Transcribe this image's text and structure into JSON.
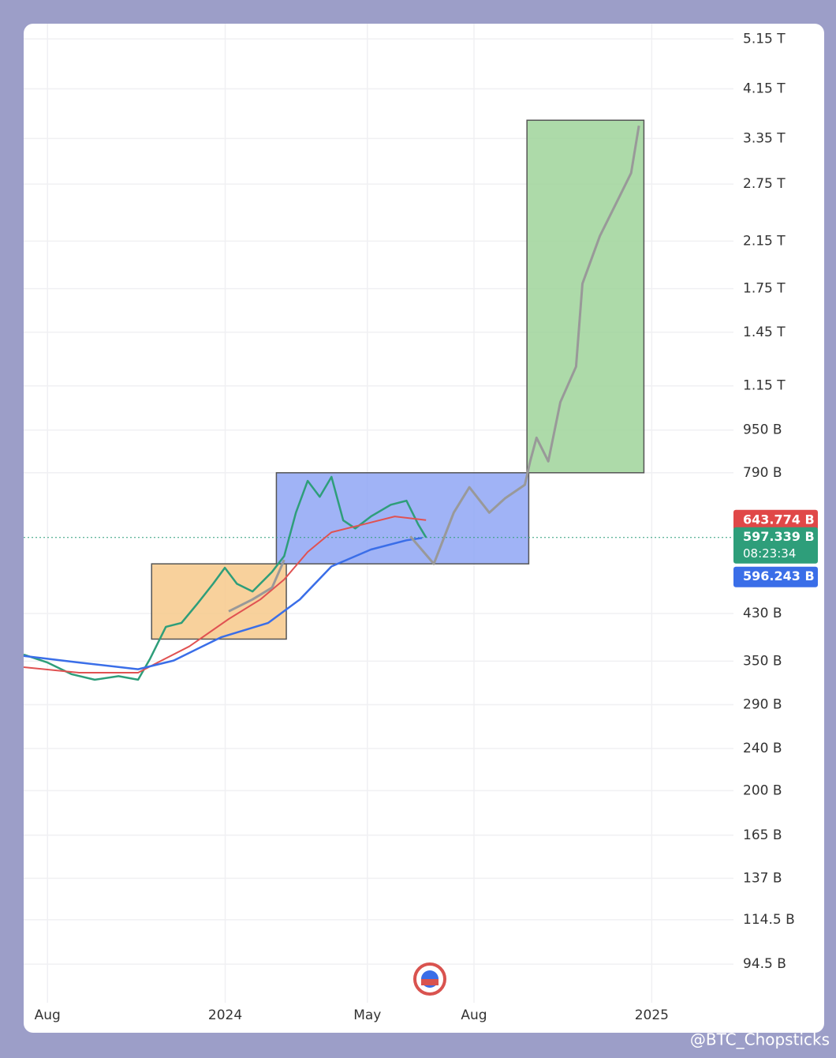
{
  "chart_data": {
    "type": "line",
    "log_scale": true,
    "grid": true,
    "xlim": [
      -0.67,
      19.3
    ],
    "ylim": [
      80,
      5500
    ],
    "xticks": [
      {
        "value": 0,
        "label": "Aug"
      },
      {
        "value": 5,
        "label": "2024"
      },
      {
        "value": 9,
        "label": "May"
      },
      {
        "value": 12,
        "label": "Aug"
      },
      {
        "value": 17,
        "label": "2025"
      }
    ],
    "yticks": [
      {
        "value": 5150,
        "label": "5.15 T"
      },
      {
        "value": 4150,
        "label": "4.15 T"
      },
      {
        "value": 3350,
        "label": "3.35 T"
      },
      {
        "value": 2750,
        "label": "2.75 T"
      },
      {
        "value": 2150,
        "label": "2.15 T"
      },
      {
        "value": 1750,
        "label": "1.75 T"
      },
      {
        "value": 1450,
        "label": "1.45 T"
      },
      {
        "value": 1150,
        "label": "1.15 T"
      },
      {
        "value": 950,
        "label": "950 B"
      },
      {
        "value": 790,
        "label": "790 B"
      },
      {
        "value": 430,
        "label": "430 B"
      },
      {
        "value": 350,
        "label": "350 B"
      },
      {
        "value": 290,
        "label": "290 B"
      },
      {
        "value": 240,
        "label": "240 B"
      },
      {
        "value": 200,
        "label": "200 B"
      },
      {
        "value": 165,
        "label": "165 B"
      },
      {
        "value": 137,
        "label": "137 B"
      },
      {
        "value": 114.5,
        "label": "114.5 B"
      },
      {
        "value": 94.5,
        "label": "94.5 B"
      }
    ],
    "series": [
      {
        "color": "#2e9e7a",
        "width": 2.5,
        "x": [
          -0.67,
          0,
          0.67,
          1.33,
          2.0,
          2.55,
          2.89,
          3.33,
          3.77,
          4.22,
          4.66,
          4.99,
          5.33,
          5.77,
          6.32,
          6.66,
          6.99,
          7.32,
          7.66,
          7.99,
          8.32,
          8.66,
          9.1,
          9.66,
          10.1,
          10.43,
          10.65
        ],
        "values": [
          360,
          348,
          331,
          323,
          328,
          323,
          354,
          406,
          413,
          449,
          489,
          524,
          489,
          473,
          515,
          551,
          665,
          763,
          712,
          776,
          643,
          621,
          654,
          688,
          700,
          632,
          597.339
        ]
      },
      {
        "color": "#e05252",
        "width": 2,
        "x": [
          -0.67,
          0.89,
          2.55,
          3.1,
          3.99,
          5.1,
          5.99,
          6.66,
          7.32,
          7.99,
          8.88,
          9.77,
          10.65
        ],
        "values": [
          341,
          333,
          333,
          348,
          373,
          420,
          457,
          498,
          561,
          611,
          632,
          654,
          643.774
        ]
      },
      {
        "color": "#3a6ee8",
        "width": 2.5,
        "x": [
          -0.67,
          0.89,
          2.55,
          3.55,
          4.88,
          6.21,
          7.1,
          7.99,
          9.1,
          10.1,
          10.54
        ],
        "values": [
          358,
          348,
          338,
          351,
          388,
          413,
          457,
          527,
          567,
          590,
          596.243
        ]
      },
      {
        "color": "#999999",
        "width": 3,
        "x": [
          5.1,
          5.77,
          6.32,
          6.66,
          8.5,
          10.21,
          10.87,
          11.43,
          11.87,
          12.43,
          12.87,
          13.43,
          13.58,
          13.76,
          14.09,
          14.43,
          14.87,
          15.05,
          15.54,
          16.09,
          16.42,
          16.64
        ],
        "values": [
          434,
          457,
          481,
          542,
          null,
          600,
          533,
          665,
          742,
          665,
          707,
          750,
          830,
          919,
          830,
          1072,
          1250,
          1789,
          2195,
          2603,
          2884,
          3538
        ]
      }
    ],
    "boxes": [
      {
        "x": [
          2.93,
          6.72
        ],
        "y": [
          385,
          533
        ],
        "color": "#f7c98b"
      },
      {
        "x": [
          6.44,
          13.54
        ],
        "y": [
          533,
          790
        ],
        "color": "#8fa6f5"
      },
      {
        "x": [
          13.49,
          16.78
        ],
        "y": [
          790,
          3624
        ],
        "color": "#9fd39a"
      }
    ],
    "price_line": {
      "value": 597.339,
      "color": "#2e9e7a"
    },
    "badges": [
      {
        "value": 643.774,
        "label": "643.774 B",
        "color": "#e04848"
      },
      {
        "value": 597.339,
        "label": "597.339 B",
        "color": "#2e9e7a",
        "countdown": "08:23:34"
      },
      {
        "value": 596.243,
        "label": "596.243 B",
        "color": "#3a6ee8"
      }
    ],
    "credit": "@BTC_Chopsticks"
  }
}
